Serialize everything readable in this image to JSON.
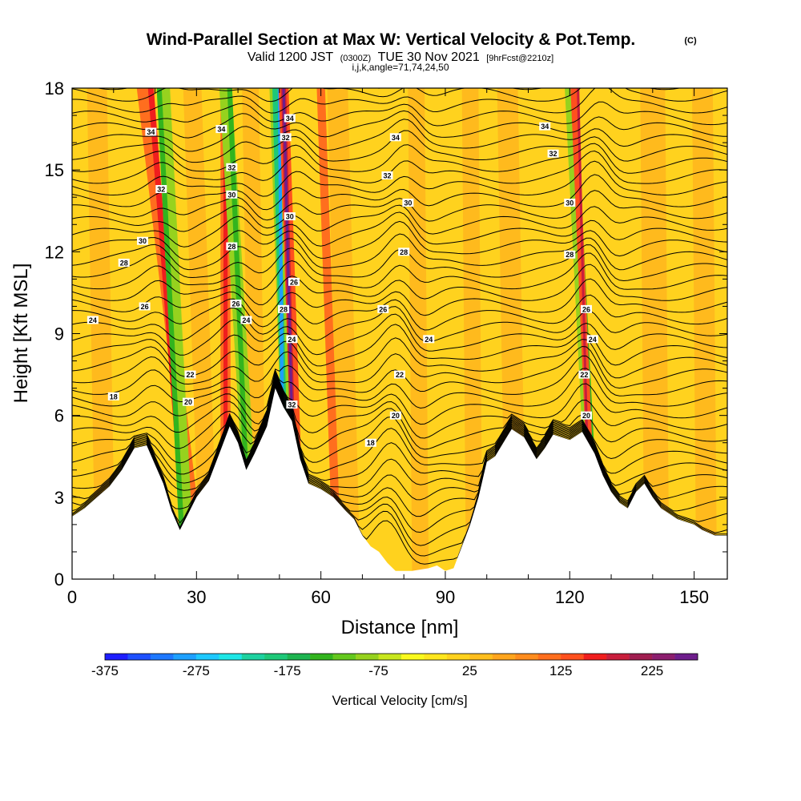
{
  "header": {
    "title": "Wind-Parallel Section at Max W: Vertical Velocity & Pot.Temp.",
    "copyright": "(C)",
    "valid_prefix": "Valid 1200 JST",
    "valid_utc": "(0300Z)",
    "valid_date": "TUE 30 Nov 2021",
    "forecast": "[9hrFcst@2210z]",
    "indices": "i,j,k,angle=71,74,24,50"
  },
  "chart_data": {
    "type": "heatmap",
    "xlabel": "Distance [nm]",
    "ylabel": "Height [Kft MSL]",
    "xlim": [
      0,
      158
    ],
    "ylim": [
      0,
      18
    ],
    "x_ticks": [
      0,
      30,
      60,
      90,
      120,
      150
    ],
    "y_ticks": [
      0,
      3,
      6,
      9,
      12,
      15,
      18
    ],
    "colorbar": {
      "title": "Vertical Velocity [cm/s]",
      "min": -375,
      "max": 275,
      "step": 25,
      "tick_values": [
        -375,
        -275,
        -175,
        -75,
        25,
        125,
        225
      ],
      "colors": [
        "#1e1eff",
        "#1e50ff",
        "#1e78ff",
        "#1ea0ff",
        "#1ec8ff",
        "#1ee6e6",
        "#1ed2a0",
        "#1ec878",
        "#1eb450",
        "#32b41e",
        "#64c81e",
        "#96d21e",
        "#c8e61e",
        "#fafa1e",
        "#ffe61e",
        "#ffd21e",
        "#ffbe1e",
        "#ffa51e",
        "#ff8c1e",
        "#ff6e1e",
        "#ff501e",
        "#f01e1e",
        "#c81e3c",
        "#a01e50",
        "#8c1e6e",
        "#6e1e8c"
      ]
    },
    "terrain_kft": [
      [
        0,
        2.3
      ],
      [
        3,
        2.6
      ],
      [
        6,
        3.0
      ],
      [
        9,
        3.4
      ],
      [
        12,
        4.0
      ],
      [
        15,
        4.8
      ],
      [
        18,
        4.9
      ],
      [
        20,
        4.2
      ],
      [
        22,
        3.5
      ],
      [
        24,
        2.5
      ],
      [
        26,
        1.8
      ],
      [
        28,
        2.4
      ],
      [
        30,
        3.0
      ],
      [
        33,
        3.6
      ],
      [
        36,
        4.8
      ],
      [
        38,
        5.6
      ],
      [
        40,
        5.0
      ],
      [
        42,
        4.0
      ],
      [
        44,
        4.6
      ],
      [
        47,
        5.6
      ],
      [
        49,
        7.0
      ],
      [
        51,
        6.3
      ],
      [
        53,
        5.8
      ],
      [
        55,
        4.4
      ],
      [
        57,
        3.5
      ],
      [
        60,
        3.3
      ],
      [
        63,
        3.0
      ],
      [
        66,
        2.5
      ],
      [
        68,
        2.2
      ],
      [
        70,
        1.6
      ],
      [
        72,
        1.2
      ],
      [
        74,
        1.0
      ],
      [
        76,
        0.6
      ],
      [
        78,
        0.3
      ],
      [
        82,
        0.3
      ],
      [
        86,
        0.4
      ],
      [
        88,
        0.5
      ],
      [
        90,
        0.3
      ],
      [
        92,
        0.4
      ],
      [
        94,
        1.2
      ],
      [
        96,
        2.0
      ],
      [
        98,
        3.0
      ],
      [
        100,
        4.3
      ],
      [
        102,
        4.5
      ],
      [
        104,
        5.0
      ],
      [
        106,
        5.5
      ],
      [
        109,
        5.2
      ],
      [
        112,
        4.4
      ],
      [
        114,
        4.8
      ],
      [
        116,
        5.3
      ],
      [
        118,
        5.2
      ],
      [
        120,
        5.1
      ],
      [
        123,
        5.4
      ],
      [
        126,
        4.6
      ],
      [
        128,
        3.8
      ],
      [
        130,
        3.2
      ],
      [
        132,
        2.8
      ],
      [
        134,
        2.6
      ],
      [
        136,
        3.2
      ],
      [
        138,
        3.5
      ],
      [
        140,
        3.0
      ],
      [
        142,
        2.6
      ],
      [
        144,
        2.4
      ],
      [
        146,
        2.2
      ],
      [
        148,
        2.1
      ],
      [
        150,
        2.0
      ],
      [
        152,
        1.8
      ],
      [
        155,
        1.6
      ],
      [
        158,
        1.6
      ]
    ],
    "contour_labels": [
      {
        "x": 19,
        "y": 16.4,
        "text": "34"
      },
      {
        "x": 21.5,
        "y": 14.3,
        "text": "32"
      },
      {
        "x": 17,
        "y": 12.4,
        "text": "30"
      },
      {
        "x": 12.5,
        "y": 11.6,
        "text": "28"
      },
      {
        "x": 17.5,
        "y": 10.0,
        "text": "26"
      },
      {
        "x": 5,
        "y": 9.5,
        "text": "24"
      },
      {
        "x": 10,
        "y": 6.7,
        "text": "18"
      },
      {
        "x": 28,
        "y": 6.5,
        "text": "20"
      },
      {
        "x": 28.5,
        "y": 7.5,
        "text": "22"
      },
      {
        "x": 36,
        "y": 16.5,
        "text": "34"
      },
      {
        "x": 38.5,
        "y": 15.1,
        "text": "32"
      },
      {
        "x": 38.5,
        "y": 14.1,
        "text": "30"
      },
      {
        "x": 38.5,
        "y": 12.2,
        "text": "28"
      },
      {
        "x": 39.5,
        "y": 10.1,
        "text": "26"
      },
      {
        "x": 42,
        "y": 9.5,
        "text": "24"
      },
      {
        "x": 52.5,
        "y": 16.9,
        "text": "34"
      },
      {
        "x": 51.5,
        "y": 16.2,
        "text": "32"
      },
      {
        "x": 52.5,
        "y": 13.3,
        "text": "30"
      },
      {
        "x": 53.5,
        "y": 10.9,
        "text": "26"
      },
      {
        "x": 51,
        "y": 9.9,
        "text": "28"
      },
      {
        "x": 53,
        "y": 8.8,
        "text": "24"
      },
      {
        "x": 53,
        "y": 6.4,
        "text": "32"
      },
      {
        "x": 78,
        "y": 16.2,
        "text": "34"
      },
      {
        "x": 76,
        "y": 14.8,
        "text": "32"
      },
      {
        "x": 81,
        "y": 13.8,
        "text": "30"
      },
      {
        "x": 80,
        "y": 12.0,
        "text": "28"
      },
      {
        "x": 75,
        "y": 9.9,
        "text": "26"
      },
      {
        "x": 86,
        "y": 8.8,
        "text": "24"
      },
      {
        "x": 79,
        "y": 7.5,
        "text": "22"
      },
      {
        "x": 78,
        "y": 6.0,
        "text": "20"
      },
      {
        "x": 72,
        "y": 5.0,
        "text": "18"
      },
      {
        "x": 114,
        "y": 16.6,
        "text": "34"
      },
      {
        "x": 116,
        "y": 15.6,
        "text": "32"
      },
      {
        "x": 120,
        "y": 13.8,
        "text": "30"
      },
      {
        "x": 120,
        "y": 11.9,
        "text": "28"
      },
      {
        "x": 124,
        "y": 9.9,
        "text": "26"
      },
      {
        "x": 125.5,
        "y": 8.8,
        "text": "24"
      },
      {
        "x": 123.5,
        "y": 7.5,
        "text": "22"
      },
      {
        "x": 124,
        "y": 6.0,
        "text": "20"
      }
    ]
  }
}
